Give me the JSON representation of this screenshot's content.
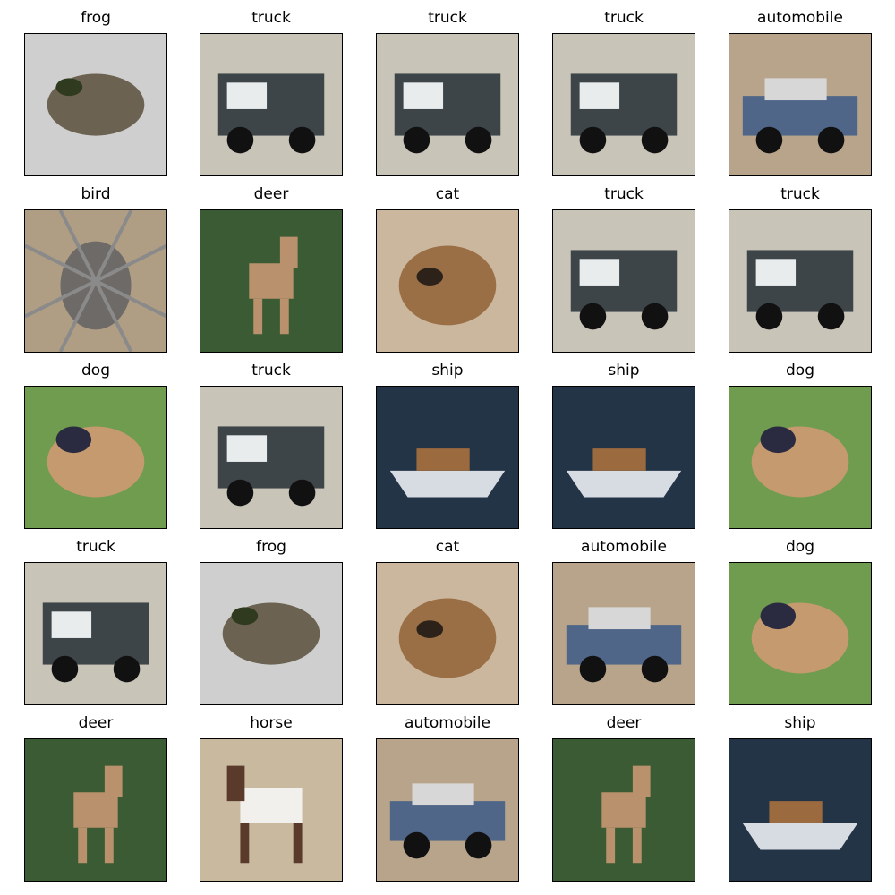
{
  "figure": {
    "rows": [
      [
        "frog",
        "truck",
        "truck",
        "truck",
        "automobile"
      ],
      [
        "bird",
        "deer",
        "cat",
        "truck",
        "truck"
      ],
      [
        "dog",
        "truck",
        "ship",
        "ship",
        "dog"
      ],
      [
        "truck",
        "frog",
        "cat",
        "automobile",
        "dog"
      ],
      [
        "deer",
        "horse",
        "automobile",
        "deer",
        "ship"
      ]
    ]
  },
  "palette": {
    "frog": {
      "bg": "#cfcfcf",
      "main": "#6b6251",
      "accent": "#2f3a1e"
    },
    "truck": {
      "bg": "#c9c4b8",
      "main": "#3e4549",
      "accent": "#e8ecec"
    },
    "automobile": {
      "bg": "#b8a48a",
      "main": "#4f6688",
      "accent": "#d7d7d7"
    },
    "bird": {
      "bg": "#b09e84",
      "main": "#6d6a67",
      "accent": "#2f2b27"
    },
    "deer": {
      "bg": "#3b5b34",
      "main": "#b9916d",
      "accent": "#27371f"
    },
    "cat": {
      "bg": "#cbb79e",
      "main": "#9a6f45",
      "accent": "#2c2219"
    },
    "dog": {
      "bg": "#6f9c4f",
      "main": "#c49a6e",
      "accent": "#2a2a40"
    },
    "ship": {
      "bg": "#243447",
      "main": "#d7dce2",
      "accent": "#9b6a3e"
    },
    "horse": {
      "bg": "#c9b99e",
      "main": "#f2f0ec",
      "accent": "#5a3a2a"
    }
  }
}
